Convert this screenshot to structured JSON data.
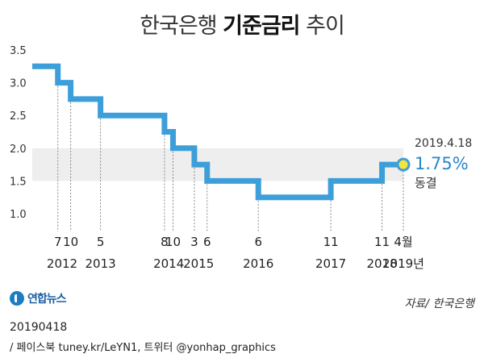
{
  "title": {
    "prefix": "한국은행 ",
    "bold": "기준금리",
    "suffix": " 추이"
  },
  "logo": {
    "name": "연합뉴스",
    "icon": "yonhap-logo-icon"
  },
  "source": "자료/ 한국은행",
  "code": "20190418",
  "credit": "/ 페이스북 tuney.kr/LeYN1, 트위터 @yonhap_graphics",
  "colors": {
    "line": "#3d9fd9",
    "band": "#eeeeee",
    "marker_fill": "#f2e53b",
    "marker_stroke": "#3d9fd9",
    "annotation": "#2a86c9",
    "tick_text": "#333333",
    "leader": "#888888"
  },
  "annotation": {
    "date": "2019.4.18",
    "value": "1.75%",
    "note": "동결"
  },
  "chart_data": {
    "type": "line",
    "ylim": [
      1.0,
      3.5
    ],
    "yticks": [
      1.0,
      1.5,
      2.0,
      2.5,
      3.0,
      3.5
    ],
    "ytick_labels": [
      "1.0",
      "1.5",
      "2.0",
      "2.5",
      "3.0",
      "3.5"
    ],
    "grid": false,
    "step": true,
    "series": [
      {
        "values": [
          {
            "t": "2012-01",
            "v": 3.25
          },
          {
            "t": "2012-07",
            "v": 3.0
          },
          {
            "t": "2012-10",
            "v": 2.75
          },
          {
            "t": "2013-05",
            "v": 2.5
          },
          {
            "t": "2014-08",
            "v": 2.25
          },
          {
            "t": "2014-10",
            "v": 2.0
          },
          {
            "t": "2015-03",
            "v": 1.75
          },
          {
            "t": "2015-06",
            "v": 1.5
          },
          {
            "t": "2016-06",
            "v": 1.25
          },
          {
            "t": "2017-11",
            "v": 1.5
          },
          {
            "t": "2018-11",
            "v": 1.75
          },
          {
            "t": "2019-04",
            "v": 1.75
          }
        ]
      }
    ],
    "month_labels": [
      {
        "t": "2012-07",
        "label": "7"
      },
      {
        "t": "2012-10",
        "label": "10"
      },
      {
        "t": "2013-05",
        "label": "5"
      },
      {
        "t": "2014-08",
        "label": "8"
      },
      {
        "t": "2014-10",
        "label": "10"
      },
      {
        "t": "2015-03",
        "label": "3"
      },
      {
        "t": "2015-06",
        "label": "6"
      },
      {
        "t": "2016-06",
        "label": "6"
      },
      {
        "t": "2017-11",
        "label": "11"
      },
      {
        "t": "2018-11",
        "label": "11"
      },
      {
        "t": "2019-04",
        "label": "4월"
      }
    ],
    "year_labels": [
      {
        "t": "2012-08",
        "label": "2012"
      },
      {
        "t": "2013-05",
        "label": "2013"
      },
      {
        "t": "2014-09",
        "label": "2014"
      },
      {
        "t": "2015-04",
        "label": "2015"
      },
      {
        "t": "2016-06",
        "label": "2016"
      },
      {
        "t": "2017-11",
        "label": "2017"
      },
      {
        "t": "2018-11",
        "label": "2018"
      },
      {
        "t": "2019-04",
        "label": "2019년"
      }
    ]
  }
}
